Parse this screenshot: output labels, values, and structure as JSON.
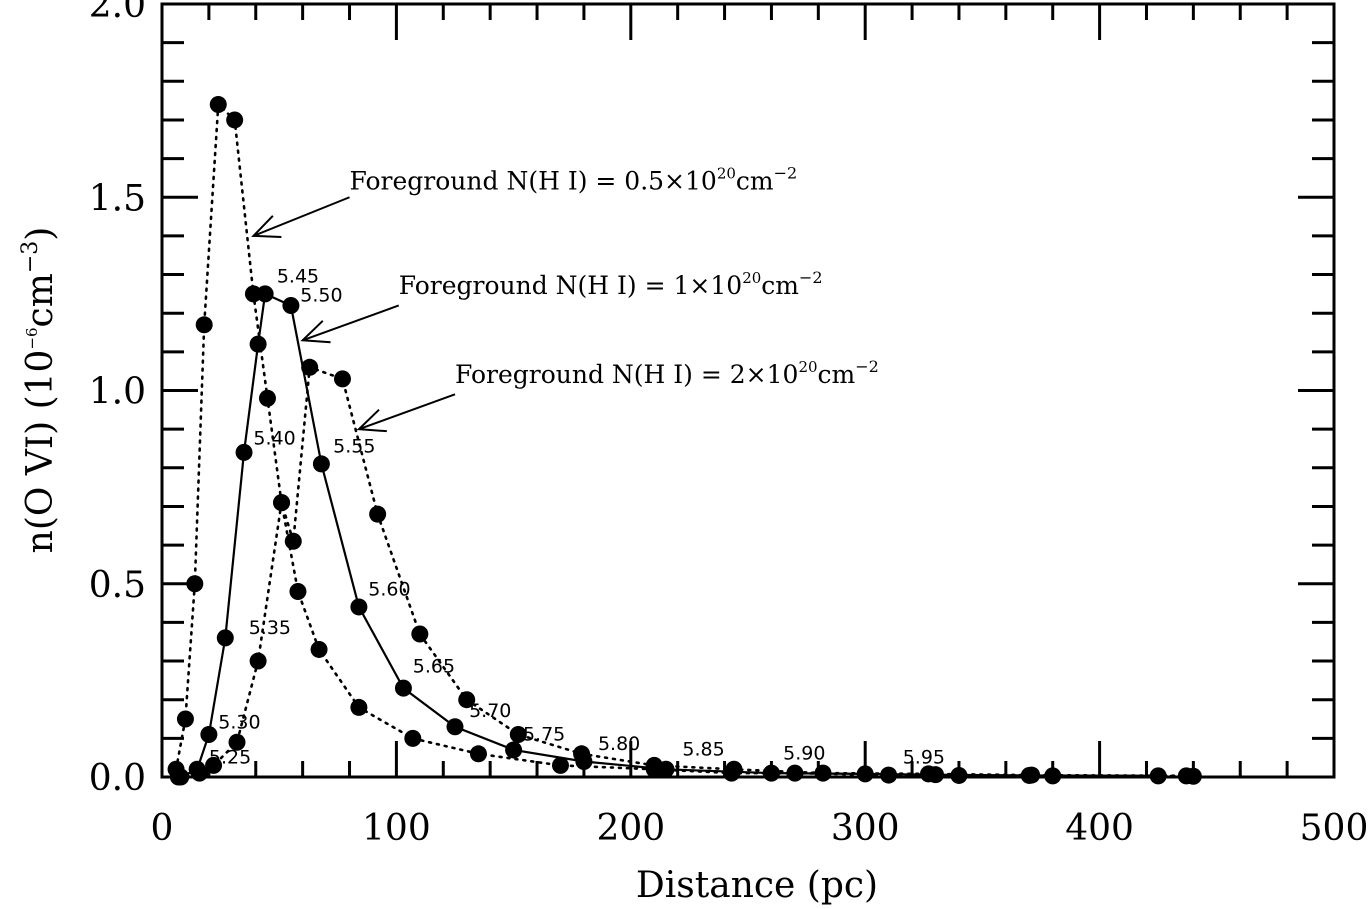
{
  "chart_data": {
    "type": "line",
    "xlabel": "Distance (pc)",
    "ylabel_main": "n(O VI)  (10",
    "ylabel_exp1": "−6",
    "ylabel_mid": "cm",
    "ylabel_exp2": "−3",
    "ylabel_close": ")",
    "xlim": [
      0,
      500
    ],
    "ylim": [
      0,
      2.0
    ],
    "xticks": [
      "0",
      "100",
      "200",
      "300",
      "400",
      "500"
    ],
    "yticks": [
      "0.0",
      "0.5",
      "1.0",
      "1.5",
      "2.0"
    ],
    "series": [
      {
        "style": "dotted",
        "x": [
          6,
          10,
          14,
          18,
          24,
          31,
          39,
          45,
          51,
          58,
          67,
          84,
          107,
          135,
          170,
          210,
          243,
          270,
          310,
          340,
          380,
          440
        ],
        "y": [
          0.02,
          0.15,
          0.5,
          1.17,
          1.74,
          1.7,
          1.25,
          0.98,
          0.71,
          0.48,
          0.33,
          0.18,
          0.1,
          0.06,
          0.03,
          0.02,
          0.01,
          0.01,
          0.005,
          0.004,
          0.003,
          0.002
        ]
      },
      {
        "style": "solid",
        "x": [
          8,
          15,
          20,
          27,
          35,
          41,
          44,
          55,
          68,
          84,
          103,
          125,
          150,
          180,
          215,
          260,
          300,
          330,
          370,
          425
        ],
        "y": [
          0.0,
          0.02,
          0.11,
          0.36,
          0.84,
          1.12,
          1.25,
          1.22,
          0.81,
          0.44,
          0.23,
          0.13,
          0.07,
          0.04,
          0.02,
          0.01,
          0.008,
          0.006,
          0.004,
          0.003
        ]
      },
      {
        "style": "dotted",
        "x": [
          7,
          16,
          22,
          32,
          41,
          51,
          56,
          63,
          77,
          92,
          110,
          130,
          152,
          179,
          210,
          244,
          282,
          327,
          371,
          437
        ],
        "y": [
          0.0,
          0.01,
          0.03,
          0.09,
          0.3,
          0.71,
          0.61,
          1.06,
          1.03,
          0.68,
          0.37,
          0.2,
          0.11,
          0.06,
          0.03,
          0.02,
          0.01,
          0.008,
          0.005,
          0.003
        ]
      }
    ],
    "temperature_labels": [
      {
        "text": "5.25",
        "x": 20,
        "y": 0.035
      },
      {
        "text": "5.30",
        "x": 24,
        "y": 0.125
      },
      {
        "text": "5.35",
        "x": 37,
        "y": 0.37
      },
      {
        "text": "5.40",
        "x": 39,
        "y": 0.86
      },
      {
        "text": "5.45",
        "x": 49,
        "y": 1.28
      },
      {
        "text": "5.50",
        "x": 59,
        "y": 1.23
      },
      {
        "text": "5.55",
        "x": 73,
        "y": 0.84
      },
      {
        "text": "5.60",
        "x": 88,
        "y": 0.47
      },
      {
        "text": "5.65",
        "x": 107,
        "y": 0.27
      },
      {
        "text": "5.70",
        "x": 131,
        "y": 0.155
      },
      {
        "text": "5.75",
        "x": 154,
        "y": 0.095
      },
      {
        "text": "5.80",
        "x": 186,
        "y": 0.07
      },
      {
        "text": "5.85",
        "x": 222,
        "y": 0.055
      },
      {
        "text": "5.90",
        "x": 265,
        "y": 0.045
      },
      {
        "text": "5.95",
        "x": 316,
        "y": 0.035
      }
    ],
    "annotations": [
      {
        "prefix": "Foreground N(H I) = 0.5×10",
        "exp": "20",
        "unit": "cm",
        "unit_exp": "−2",
        "text_x": 80,
        "text_y": 1.52,
        "arrow_from_x": 80,
        "arrow_from_y": 1.5,
        "arrow_to_x": 39,
        "arrow_to_y": 1.4
      },
      {
        "prefix": "Foreground N(H I) = 1×10",
        "exp": "20",
        "unit": "cm",
        "unit_exp": "−2",
        "text_x": 101,
        "text_y": 1.25,
        "arrow_from_x": 101,
        "arrow_from_y": 1.22,
        "arrow_to_x": 60,
        "arrow_to_y": 1.13
      },
      {
        "prefix": "Foreground N(H I) = 2×10",
        "exp": "20",
        "unit": "cm",
        "unit_exp": "−2",
        "text_x": 125,
        "text_y": 1.02,
        "arrow_from_x": 125,
        "arrow_from_y": 0.99,
        "arrow_to_x": 84,
        "arrow_to_y": 0.9
      }
    ]
  }
}
